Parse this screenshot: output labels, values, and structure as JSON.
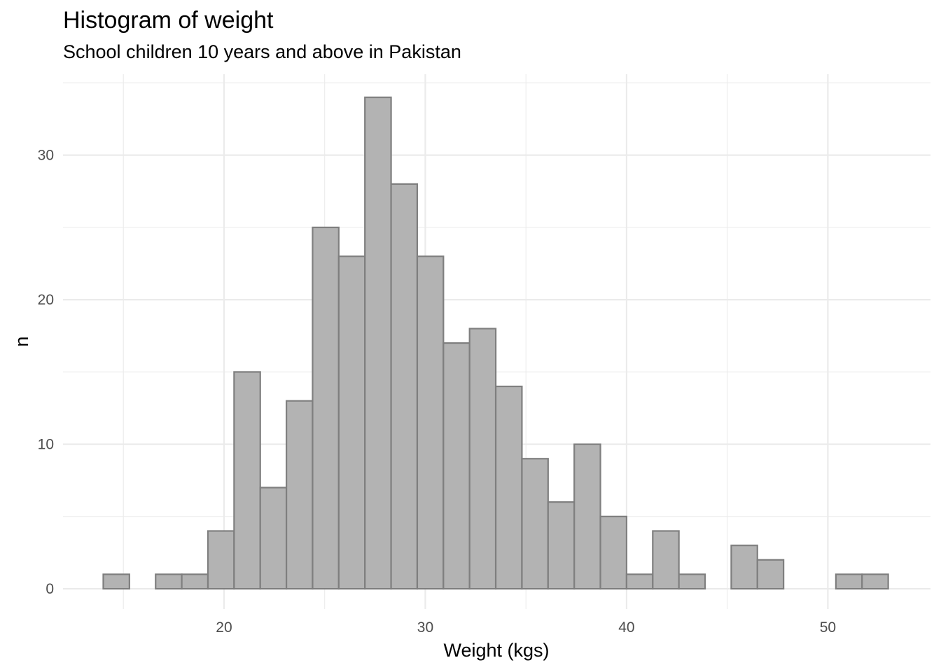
{
  "chart_data": {
    "type": "bar",
    "subtype": "histogram",
    "title": "Histogram of weight",
    "subtitle": "School children 10 years and above in Pakistan",
    "xlabel": "Weight (kgs)",
    "ylabel": "n",
    "bin_width": 1.3,
    "bins": [
      {
        "start": 14.0,
        "end": 15.3,
        "count": 1
      },
      {
        "start": 15.3,
        "end": 16.6,
        "count": 0
      },
      {
        "start": 16.6,
        "end": 17.9,
        "count": 1
      },
      {
        "start": 17.9,
        "end": 19.2,
        "count": 1
      },
      {
        "start": 19.2,
        "end": 20.5,
        "count": 4
      },
      {
        "start": 20.5,
        "end": 21.8,
        "count": 15
      },
      {
        "start": 21.8,
        "end": 23.1,
        "count": 7
      },
      {
        "start": 23.1,
        "end": 24.4,
        "count": 13
      },
      {
        "start": 24.4,
        "end": 25.7,
        "count": 25
      },
      {
        "start": 25.7,
        "end": 27.0,
        "count": 23
      },
      {
        "start": 27.0,
        "end": 28.3,
        "count": 34
      },
      {
        "start": 28.3,
        "end": 29.6,
        "count": 28
      },
      {
        "start": 29.6,
        "end": 30.9,
        "count": 23
      },
      {
        "start": 30.9,
        "end": 32.2,
        "count": 17
      },
      {
        "start": 32.2,
        "end": 33.5,
        "count": 18
      },
      {
        "start": 33.5,
        "end": 34.8,
        "count": 14
      },
      {
        "start": 34.8,
        "end": 36.1,
        "count": 9
      },
      {
        "start": 36.1,
        "end": 37.4,
        "count": 6
      },
      {
        "start": 37.4,
        "end": 38.7,
        "count": 10
      },
      {
        "start": 38.7,
        "end": 40.0,
        "count": 5
      },
      {
        "start": 40.0,
        "end": 41.3,
        "count": 1
      },
      {
        "start": 41.3,
        "end": 42.6,
        "count": 4
      },
      {
        "start": 42.6,
        "end": 43.9,
        "count": 1
      },
      {
        "start": 43.9,
        "end": 45.2,
        "count": 0
      },
      {
        "start": 45.2,
        "end": 46.5,
        "count": 3
      },
      {
        "start": 46.5,
        "end": 47.8,
        "count": 2
      },
      {
        "start": 47.8,
        "end": 49.1,
        "count": 0
      },
      {
        "start": 49.1,
        "end": 50.4,
        "count": 0
      },
      {
        "start": 50.4,
        "end": 51.7,
        "count": 1
      },
      {
        "start": 51.7,
        "end": 53.0,
        "count": 1
      }
    ],
    "xlim": [
      12.0,
      55.1
    ],
    "ylim": [
      -1.4,
      35.6
    ],
    "x_ticks": [
      20,
      30,
      40,
      50
    ],
    "x_tick_labels": [
      "20",
      "30",
      "40",
      "50"
    ],
    "y_ticks": [
      0,
      10,
      20,
      30
    ],
    "y_tick_labels": [
      "0",
      "10",
      "20",
      "30"
    ],
    "x_minor_ticks": [
      15,
      25,
      35,
      45
    ],
    "y_minor_ticks": [
      5,
      15,
      25,
      35
    ],
    "grid": true,
    "legend": "none",
    "colors": {
      "bar_fill": "#b3b3b3",
      "bar_stroke": "#7f7f7f",
      "grid": "#ebebeb",
      "tick_text": "#4d4d4d"
    }
  }
}
